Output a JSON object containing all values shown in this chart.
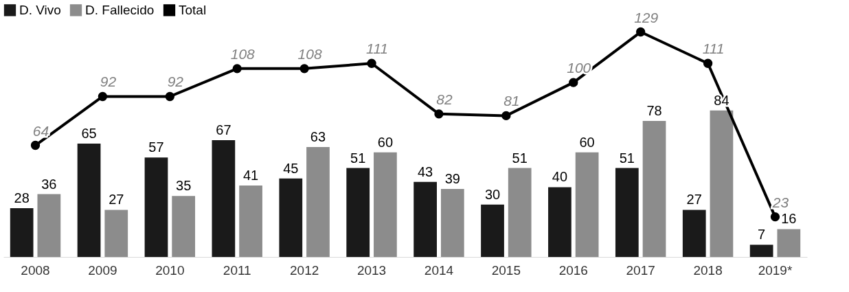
{
  "chart_data": {
    "type": "bar",
    "categories": [
      "2008",
      "2009",
      "2010",
      "2011",
      "2012",
      "2013",
      "2014",
      "2015",
      "2016",
      "2017",
      "2018",
      "2019*"
    ],
    "series": [
      {
        "name": "D. Vivo",
        "color": "#1a1a1a",
        "values": [
          28,
          65,
          57,
          67,
          45,
          51,
          43,
          30,
          40,
          51,
          27,
          7
        ]
      },
      {
        "name": "D. Fallecido",
        "color": "#8c8c8c",
        "values": [
          36,
          27,
          35,
          41,
          63,
          60,
          39,
          51,
          60,
          78,
          84,
          16
        ]
      },
      {
        "name": "Total",
        "type": "line",
        "color": "#000000",
        "values": [
          64,
          92,
          92,
          108,
          108,
          111,
          82,
          81,
          100,
          129,
          111,
          23
        ]
      }
    ],
    "tick_labels": "x",
    "data_labels": true,
    "legend": "top left",
    "grid": false,
    "marker": "circle",
    "line_style": "solid"
  }
}
